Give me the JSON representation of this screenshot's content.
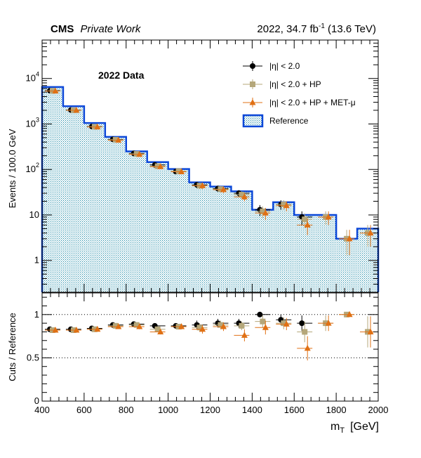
{
  "header": {
    "experiment": "CMS",
    "status": "Private Work",
    "lumi_prefix": "2022, 34.7 fb",
    "lumi_exp": "-1",
    "lumi_suffix": " (13.6 TeV)"
  },
  "chart_data": [
    {
      "type": "bar",
      "subtype": "histogram",
      "annotation": "2022 Data",
      "ylabel": "Events / 100.0 GeV",
      "yscale": "log",
      "ylim": [
        0.2,
        70000
      ],
      "xlim": [
        400,
        2000
      ],
      "y_ticks": [
        {
          "value": 1,
          "label": "1"
        },
        {
          "value": 10,
          "label": "10"
        },
        {
          "value": 100,
          "label": "10",
          "exp": "2"
        },
        {
          "value": 1000,
          "label": "10",
          "exp": "3"
        },
        {
          "value": 10000,
          "label": "10",
          "exp": "4"
        }
      ],
      "bin_edges": [
        400,
        500,
        600,
        700,
        800,
        900,
        1000,
        1100,
        1200,
        1300,
        1400,
        1500,
        1600,
        1700,
        1800,
        1900,
        2000
      ],
      "bin_centers": [
        450,
        550,
        650,
        750,
        850,
        950,
        1050,
        1150,
        1250,
        1350,
        1450,
        1550,
        1650,
        1750,
        1850,
        1950
      ],
      "reference": {
        "name": "Reference",
        "color": "#0b47d8",
        "fill_color": "#a9d6e0",
        "values": [
          6500,
          2450,
          1050,
          520,
          250,
          145,
          102,
          52,
          42,
          33,
          13,
          19,
          10,
          10,
          3,
          5
        ]
      },
      "series": [
        {
          "name": "|η| < 2.0",
          "marker": "circle",
          "color": "#000000",
          "values": [
            5400,
            2030,
            880,
            460,
            225,
            126,
            90,
            46,
            38,
            30,
            13,
            17,
            9,
            null,
            null,
            null
          ],
          "err_low": [
            70,
            45,
            30,
            21,
            15,
            11,
            9,
            7,
            6,
            5,
            3.5,
            4,
            3,
            null,
            null,
            null
          ],
          "err_high": [
            70,
            45,
            30,
            21,
            15,
            11,
            9,
            7,
            6,
            5,
            3.5,
            4,
            3,
            null,
            null,
            null
          ]
        },
        {
          "name": "|η| < 2.0 + HP",
          "marker": "square",
          "color": "#b5a77a",
          "values": [
            5350,
            2010,
            870,
            450,
            220,
            118,
            92,
            44,
            37,
            28,
            12,
            17,
            8,
            9,
            3,
            4
          ],
          "err_low": [
            70,
            45,
            30,
            21,
            15,
            11,
            9,
            7,
            6,
            5,
            3.4,
            4,
            2.8,
            3,
            1.7,
            2
          ],
          "err_high": [
            70,
            45,
            30,
            21,
            15,
            11,
            9,
            7,
            6,
            5,
            3.4,
            4,
            2.8,
            3,
            1.7,
            2
          ]
        },
        {
          "name": "|η| < 2.0 + HP + MET-μ",
          "marker": "triangle",
          "color": "#e07014",
          "values": [
            5300,
            2000,
            860,
            440,
            215,
            115,
            89,
            44,
            36,
            25,
            11,
            16,
            6,
            9,
            3,
            4
          ],
          "err_low": [
            70,
            45,
            30,
            21,
            15,
            11,
            9,
            7,
            6,
            5,
            3.3,
            4,
            2.4,
            3,
            1.7,
            2
          ],
          "err_high": [
            70,
            45,
            30,
            21,
            15,
            11,
            9,
            7,
            6,
            5,
            3.3,
            4,
            2.4,
            3,
            1.7,
            2
          ]
        }
      ],
      "legend_position": "top-right"
    },
    {
      "type": "scatter",
      "subtype": "ratio",
      "ylabel": "Cuts / Reference",
      "xlabel_main": "m",
      "xlabel_sub": "T",
      "xlabel_unit": "[GeV]",
      "xlim": [
        400,
        2000
      ],
      "ylim": [
        0,
        1.25
      ],
      "x_ticks": [
        400,
        600,
        800,
        1000,
        1200,
        1400,
        1600,
        1800,
        2000
      ],
      "y_ticks": [
        {
          "value": 0,
          "label": "0"
        },
        {
          "value": 0.5,
          "label": "0.5"
        },
        {
          "value": 1,
          "label": "1"
        }
      ],
      "reference_lines": [
        0.5,
        1.0
      ],
      "x": [
        450,
        550,
        650,
        750,
        850,
        950,
        1050,
        1150,
        1250,
        1350,
        1450,
        1550,
        1650,
        1750,
        1850,
        1950
      ],
      "series": [
        {
          "name": "|η| < 2.0",
          "marker": "circle",
          "color": "#000000",
          "values": [
            0.83,
            0.83,
            0.84,
            0.88,
            0.89,
            0.87,
            0.87,
            0.88,
            0.9,
            0.9,
            1.0,
            0.94,
            0.9,
            null,
            null,
            null
          ],
          "errors": [
            0.02,
            0.02,
            0.02,
            0.02,
            0.03,
            0.03,
            0.03,
            0.05,
            0.05,
            0.05,
            0.0,
            0.06,
            0.09,
            null,
            null,
            null
          ]
        },
        {
          "name": "|η| < 2.0 + HP",
          "marker": "square",
          "color": "#b5a77a",
          "values": [
            0.82,
            0.82,
            0.83,
            0.87,
            0.88,
            0.83,
            0.86,
            0.85,
            0.88,
            0.87,
            0.92,
            0.9,
            0.8,
            0.9,
            1.0,
            0.8
          ],
          "errors": [
            0.02,
            0.02,
            0.02,
            0.02,
            0.03,
            0.03,
            0.03,
            0.05,
            0.05,
            0.05,
            0.07,
            0.07,
            0.12,
            0.09,
            0.0,
            0.18
          ]
        },
        {
          "name": "|η| < 2.0 + HP + MET-μ",
          "marker": "triangle",
          "color": "#e07014",
          "values": [
            0.82,
            0.82,
            0.83,
            0.86,
            0.86,
            0.8,
            0.86,
            0.83,
            0.86,
            0.76,
            0.85,
            0.89,
            0.61,
            0.9,
            1.0,
            0.8
          ],
          "errors": [
            0.02,
            0.02,
            0.02,
            0.02,
            0.03,
            0.03,
            0.03,
            0.05,
            0.05,
            0.07,
            0.08,
            0.07,
            0.14,
            0.09,
            0.0,
            0.18
          ]
        }
      ]
    }
  ]
}
